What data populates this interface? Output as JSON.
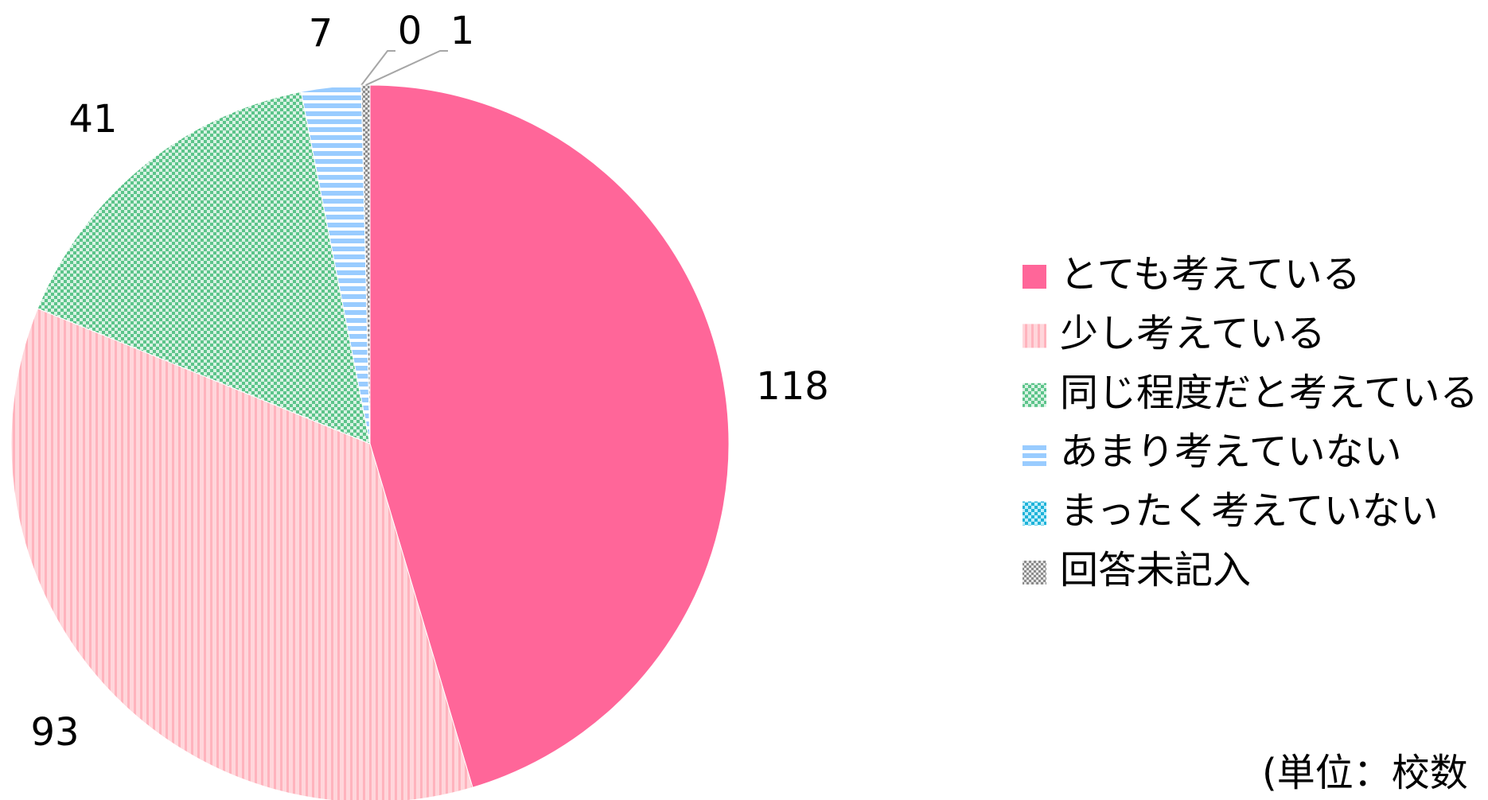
{
  "chart_data": {
    "type": "pie",
    "categories": [
      "とても考えている",
      "少し考えている",
      "同じ程度だと考えている",
      "あまり考えていない",
      "まったく考えていない",
      "回答未記入"
    ],
    "values": [
      118,
      93,
      41,
      7,
      0,
      1
    ],
    "colors": [
      "#ff6699",
      "#ffc4cc",
      "#7fd4a4",
      "#99ccff",
      "#33c3e6",
      "#a6a6a6"
    ],
    "legend": "right",
    "note": "(単位：校数"
  }
}
